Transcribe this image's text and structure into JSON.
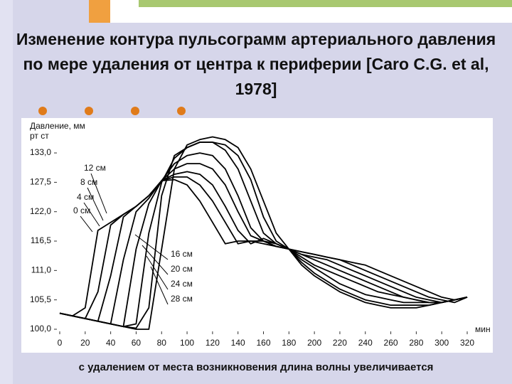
{
  "title": "Изменение контура пульсограмм артериального давления по мере удаления от центра к периферии [Caro C.G. et al, 1978]",
  "caption": "с удалением от места возникновения длина волны увеличивается",
  "chart_data": {
    "type": "line",
    "y_label": "Давление, мм рт ст",
    "x_label": "мин",
    "x": [
      0,
      10,
      20,
      30,
      40,
      50,
      60,
      70,
      80,
      90,
      100,
      110,
      120,
      130,
      140,
      150,
      160,
      170,
      180,
      190,
      200,
      210,
      220,
      230,
      240,
      250,
      260,
      270,
      280,
      290,
      300,
      310,
      320
    ],
    "xlim": [
      0,
      320
    ],
    "xticks": [
      0,
      20,
      40,
      60,
      80,
      100,
      120,
      140,
      160,
      180,
      200,
      220,
      240,
      260,
      280,
      300,
      320
    ],
    "ylim": [
      100,
      137
    ],
    "yticks": [
      {
        "value": 100,
        "label": "100,0"
      },
      {
        "value": 105.5,
        "label": "105,5"
      },
      {
        "value": 111,
        "label": "111,0"
      },
      {
        "value": 116.5,
        "label": "116,5"
      },
      {
        "value": 122,
        "label": "122,0"
      },
      {
        "value": 127.5,
        "label": "127,5"
      },
      {
        "value": 133,
        "label": "133,0"
      }
    ],
    "grid": false,
    "series": [
      {
        "name": "0 см",
        "color": "#000000",
        "values": [
          103,
          102.5,
          104,
          118.5,
          120,
          121.5,
          123,
          125,
          127.8,
          128,
          127,
          124,
          120,
          116,
          116.5,
          116.5,
          116,
          115.5,
          115,
          114.5,
          114,
          113.5,
          113,
          112.5,
          112,
          111,
          110,
          109,
          108,
          107,
          106,
          105.5,
          106
        ]
      },
      {
        "name": "4 см",
        "color": "#000000",
        "values": [
          103,
          102.5,
          102,
          107,
          119.5,
          121.5,
          123,
          125,
          127.8,
          128.5,
          128.5,
          127,
          124,
          120,
          116,
          116.5,
          116.5,
          115.5,
          115,
          114.5,
          114,
          113.5,
          113,
          112,
          111,
          110,
          109,
          108,
          107,
          106,
          105.5,
          105,
          106
        ]
      },
      {
        "name": "8 см",
        "color": "#000000",
        "values": [
          103,
          102.5,
          102,
          101.5,
          110,
          121,
          123,
          125,
          127.8,
          129,
          129.5,
          129,
          127,
          123,
          118.5,
          116,
          117,
          116,
          115,
          114,
          113.5,
          113,
          112,
          111,
          110,
          109,
          108,
          107,
          106,
          105.5,
          105,
          105.5,
          106
        ]
      },
      {
        "name": "12 см",
        "color": "#000000",
        "values": [
          103,
          102.5,
          102,
          101.5,
          101,
          113,
          122,
          124.5,
          127.8,
          130,
          131,
          131,
          130,
          127,
          122,
          117.5,
          116.5,
          116,
          115,
          114,
          113,
          112,
          111,
          110,
          109,
          108,
          107,
          106,
          105.5,
          105,
          105,
          105.5,
          106
        ]
      },
      {
        "name": "16 см",
        "color": "#000000",
        "values": [
          103,
          102.5,
          102,
          101.5,
          101,
          100.5,
          115,
          123.5,
          127.8,
          131,
          132.5,
          133,
          132.5,
          130,
          125,
          119,
          116.5,
          115.5,
          115,
          113.5,
          112,
          111,
          110,
          109,
          108,
          107,
          106.5,
          106,
          105.5,
          105,
          105,
          105.5,
          106
        ]
      },
      {
        "name": "20 см",
        "color": "#000000",
        "values": [
          103,
          102.5,
          102,
          101.5,
          101,
          100.5,
          101,
          118,
          127.5,
          132,
          134,
          135,
          135,
          133.5,
          130,
          124,
          118,
          116,
          115,
          113,
          111.5,
          110,
          108.5,
          107.5,
          106.5,
          106,
          105.5,
          105,
          105,
          105,
          105,
          105.5,
          106
        ]
      },
      {
        "name": "24 см",
        "color": "#000000",
        "values": [
          103,
          102.5,
          102,
          101.5,
          101,
          100.5,
          100.2,
          104,
          125,
          132.5,
          134,
          135,
          135,
          134.5,
          132.5,
          128,
          121,
          116.5,
          115,
          112.5,
          110.5,
          109,
          107.5,
          106.5,
          105.5,
          105,
          104.5,
          104.5,
          104.5,
          104.5,
          105,
          105.5,
          106
        ]
      },
      {
        "name": "28 см",
        "color": "#000000",
        "values": [
          103,
          102.5,
          102,
          101.5,
          101,
          100.5,
          100,
          100,
          115,
          130,
          134.5,
          135.5,
          136,
          135.5,
          134,
          130,
          124,
          118,
          115,
          112,
          110,
          108.5,
          107,
          106,
          105,
          104.5,
          104,
          104,
          104,
          104.5,
          105,
          105.5,
          106
        ]
      }
    ]
  }
}
